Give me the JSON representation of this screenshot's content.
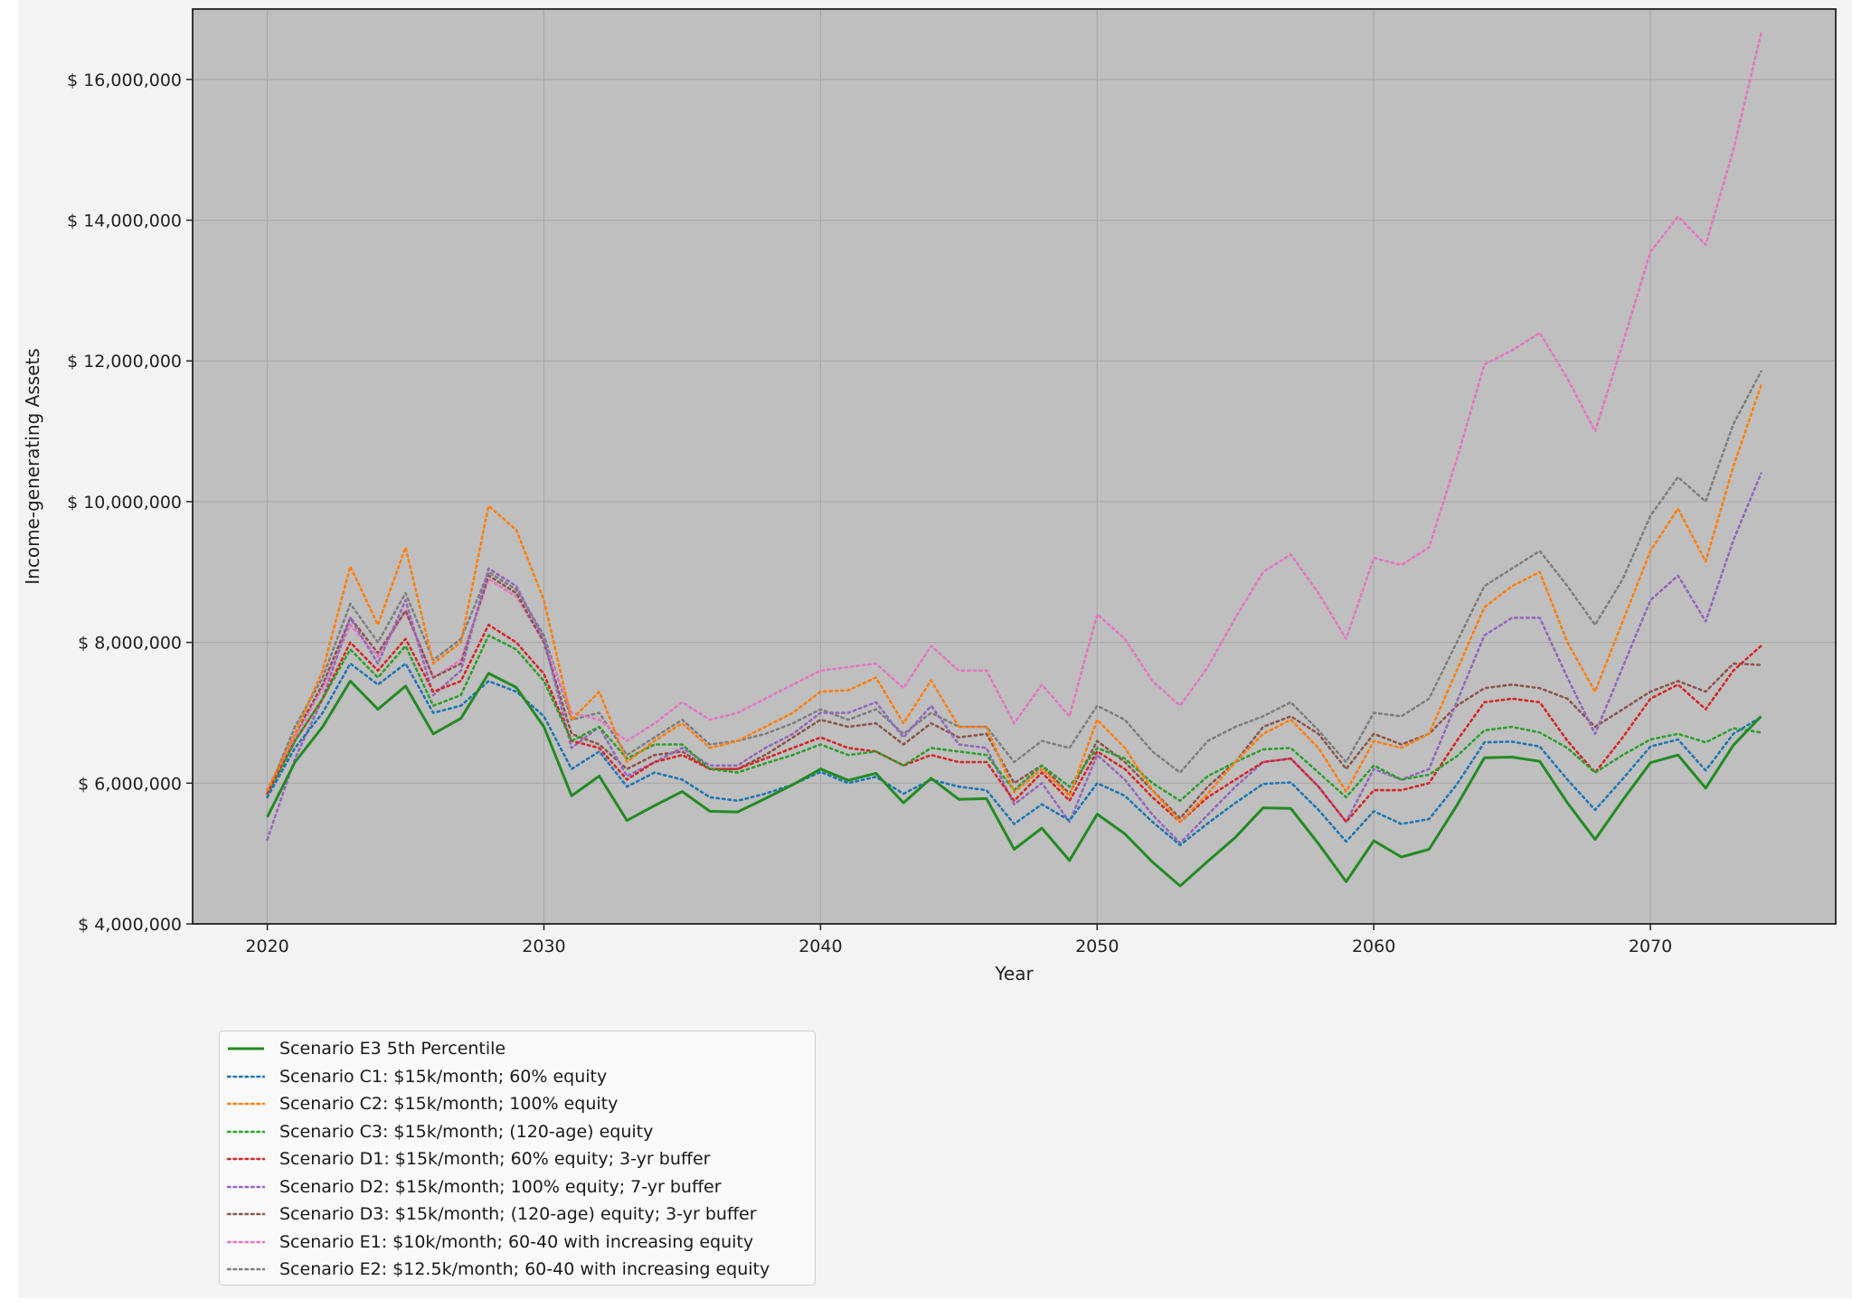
{
  "chart_data": {
    "type": "line",
    "title": "",
    "xlabel": "Year",
    "ylabel": "Income-generating Assets",
    "xlim": [
      2017.3,
      2076.7
    ],
    "ylim": [
      4000000,
      17000000
    ],
    "x_ticks": [
      2020,
      2030,
      2040,
      2050,
      2060,
      2070
    ],
    "y_ticks": [
      4000000,
      6000000,
      8000000,
      10000000,
      12000000,
      14000000,
      16000000
    ],
    "y_tick_labels": [
      "$ 4,000,000",
      "$ 6,000,000",
      "$ 8,000,000",
      "$ 10,000,000",
      "$ 12,000,000",
      "$ 14,000,000",
      "$ 16,000,000"
    ],
    "x_tick_labels": [
      "2020",
      "2030",
      "2040",
      "2050",
      "2060",
      "2070"
    ],
    "grid": true,
    "legend_position": "below",
    "plot_background": "#bfbfbf",
    "x": [
      2020,
      2021,
      2022,
      2023,
      2024,
      2025,
      2026,
      2027,
      2028,
      2029,
      2030,
      2031,
      2032,
      2033,
      2034,
      2035,
      2036,
      2037,
      2038,
      2039,
      2040,
      2041,
      2042,
      2043,
      2044,
      2045,
      2046,
      2047,
      2048,
      2049,
      2050,
      2051,
      2052,
      2053,
      2054,
      2055,
      2056,
      2057,
      2058,
      2059,
      2060,
      2061,
      2062,
      2063,
      2064,
      2065,
      2066,
      2067,
      2068,
      2069,
      2070,
      2071,
      2072,
      2073,
      2074
    ],
    "series": [
      {
        "name": "Scenario E3 5th Percentile",
        "color": "#228b22",
        "style": "solid",
        "values": [
          5520000,
          6300000,
          6800000,
          7450000,
          7050000,
          7380000,
          6700000,
          6920000,
          7560000,
          7360000,
          6800000,
          5820000,
          6100000,
          5470000,
          5680000,
          5880000,
          5600000,
          5590000,
          5780000,
          5980000,
          6200000,
          6040000,
          6140000,
          5720000,
          6070000,
          5770000,
          5780000,
          5060000,
          5360000,
          4900000,
          5560000,
          5280000,
          4880000,
          4540000,
          4890000,
          5230000,
          5650000,
          5640000,
          5140000,
          4600000,
          5180000,
          4950000,
          5060000,
          5680000,
          6360000,
          6370000,
          6310000,
          5720000,
          5200000,
          5760000,
          6290000,
          6400000,
          5930000,
          6540000,
          6950000
        ]
      },
      {
        "name": "Scenario C1: $15k/month; 60% equity",
        "color": "#1f77b4",
        "style": "dotted",
        "values": [
          5800000,
          6500000,
          7000000,
          7700000,
          7400000,
          7700000,
          7000000,
          7100000,
          7450000,
          7300000,
          6950000,
          6200000,
          6450000,
          5950000,
          6150000,
          6050000,
          5800000,
          5750000,
          5850000,
          5980000,
          6160000,
          6000000,
          6090000,
          5850000,
          6050000,
          5950000,
          5900000,
          5420000,
          5700000,
          5470000,
          6000000,
          5820000,
          5450000,
          5120000,
          5430000,
          5720000,
          5990000,
          6010000,
          5620000,
          5170000,
          5600000,
          5420000,
          5490000,
          5980000,
          6580000,
          6590000,
          6520000,
          6050000,
          5620000,
          6060000,
          6520000,
          6620000,
          6180000,
          6700000,
          6940000
        ]
      },
      {
        "name": "Scenario C2: $15k/month; 100% equity",
        "color": "#ff7f0e",
        "style": "dotted",
        "values": [
          5900000,
          6700000,
          7600000,
          9080000,
          8250000,
          9350000,
          7700000,
          8000000,
          9940000,
          9600000,
          8600000,
          6900000,
          7300000,
          6300000,
          6600000,
          6850000,
          6500000,
          6600000,
          6800000,
          7000000,
          7300000,
          7320000,
          7500000,
          6850000,
          7460000,
          6800000,
          6800000,
          5870000,
          6200000,
          5820000,
          6900000,
          6500000,
          5900000,
          5450000,
          5850000,
          6300000,
          6700000,
          6900000,
          6500000,
          5880000,
          6600000,
          6500000,
          6700000,
          7600000,
          8500000,
          8800000,
          9000000,
          8000000,
          7300000,
          8300000,
          9300000,
          9900000,
          9150000,
          10500000,
          11650000
        ]
      },
      {
        "name": "Scenario C3: $15k/month; (120-age) equity",
        "color": "#2ca02c",
        "style": "dotted",
        "values": [
          5800000,
          6600000,
          7200000,
          7900000,
          7500000,
          7950000,
          7100000,
          7250000,
          8100000,
          7900000,
          7450000,
          6600000,
          6800000,
          6350000,
          6550000,
          6550000,
          6200000,
          6150000,
          6280000,
          6400000,
          6550000,
          6400000,
          6450000,
          6250000,
          6500000,
          6450000,
          6400000,
          5900000,
          6250000,
          5950000,
          6500000,
          6350000,
          6000000,
          5750000,
          6100000,
          6300000,
          6480000,
          6500000,
          6150000,
          5800000,
          6250000,
          6050000,
          6120000,
          6380000,
          6750000,
          6800000,
          6720000,
          6500000,
          6150000,
          6400000,
          6620000,
          6700000,
          6580000,
          6780000,
          6720000
        ]
      },
      {
        "name": "Scenario D1: $15k/month; 60% equity; 3-yr buffer",
        "color": "#d62728",
        "style": "dotted",
        "values": [
          5850000,
          6600000,
          7200000,
          8000000,
          7600000,
          8050000,
          7300000,
          7450000,
          8250000,
          8000000,
          7550000,
          6600000,
          6500000,
          6050000,
          6300000,
          6400000,
          6200000,
          6200000,
          6350000,
          6500000,
          6650000,
          6500000,
          6450000,
          6250000,
          6400000,
          6300000,
          6300000,
          5750000,
          6150000,
          5750000,
          6450000,
          6200000,
          5800000,
          5450000,
          5800000,
          6050000,
          6300000,
          6350000,
          5950000,
          5450000,
          5900000,
          5900000,
          6000000,
          6600000,
          7150000,
          7200000,
          7150000,
          6600000,
          6150000,
          6650000,
          7200000,
          7400000,
          7050000,
          7600000,
          7950000
        ]
      },
      {
        "name": "Scenario D2: $15k/month; 100% equity; 7-yr buffer",
        "color": "#9467bd",
        "style": "dotted",
        "values": [
          5200000,
          6350000,
          7200000,
          8350000,
          7700000,
          8600000,
          7250000,
          7600000,
          9050000,
          8800000,
          8050000,
          6500000,
          6800000,
          6100000,
          6300000,
          6500000,
          6250000,
          6250000,
          6500000,
          6700000,
          7000000,
          7000000,
          7150000,
          6650000,
          7100000,
          6550000,
          6500000,
          5700000,
          6000000,
          5450000,
          6400000,
          6050000,
          5550000,
          5150000,
          5550000,
          5950000,
          6300000,
          6350000,
          5950000,
          5450000,
          6200000,
          6050000,
          6200000,
          7150000,
          8100000,
          8350000,
          8350000,
          7500000,
          6700000,
          7650000,
          8600000,
          8950000,
          8300000,
          9450000,
          10400000
        ]
      },
      {
        "name": "Scenario D3: $15k/month; (120-age) equity; 3-yr buffer",
        "color": "#8c564b",
        "style": "dotted",
        "values": [
          5900000,
          6700000,
          7400000,
          8350000,
          7850000,
          8450000,
          7500000,
          7700000,
          8950000,
          8700000,
          8000000,
          6700000,
          6550000,
          6200000,
          6400000,
          6450000,
          6200000,
          6200000,
          6400000,
          6650000,
          6900000,
          6800000,
          6850000,
          6550000,
          6850000,
          6650000,
          6700000,
          6000000,
          6250000,
          5850000,
          6600000,
          6300000,
          5900000,
          5500000,
          5950000,
          6300000,
          6800000,
          6950000,
          6700000,
          6200000,
          6700000,
          6550000,
          6700000,
          7100000,
          7350000,
          7400000,
          7350000,
          7200000,
          6800000,
          7050000,
          7300000,
          7450000,
          7300000,
          7700000,
          7680000
        ]
      },
      {
        "name": "Scenario E1: $10k/month; 60-40 with increasing equity",
        "color": "#e377c2",
        "style": "dotted",
        "values": [
          5850000,
          6650000,
          7350000,
          8250000,
          7800000,
          8450000,
          7500000,
          7750000,
          8900000,
          8650000,
          8000000,
          7000000,
          6900000,
          6600000,
          6850000,
          7150000,
          6900000,
          7000000,
          7200000,
          7400000,
          7600000,
          7650000,
          7700000,
          7350000,
          7950000,
          7600000,
          7600000,
          6850000,
          7400000,
          6950000,
          8400000,
          8050000,
          7450000,
          7100000,
          7650000,
          8350000,
          9000000,
          9250000,
          8700000,
          8050000,
          9200000,
          9100000,
          9350000,
          10600000,
          11950000,
          12150000,
          12400000,
          11750000,
          11000000,
          12250000,
          13550000,
          14050000,
          13650000,
          15000000,
          16650000
        ]
      },
      {
        "name": "Scenario E2: $12.5k/month; 60-40 with increasing equity",
        "color": "#7f7f7f",
        "style": "dotted",
        "values": [
          5850000,
          6800000,
          7500000,
          8550000,
          8000000,
          8700000,
          7750000,
          8050000,
          9000000,
          8750000,
          8100000,
          6900000,
          7000000,
          6400000,
          6650000,
          6900000,
          6550000,
          6600000,
          6700000,
          6850000,
          7050000,
          6900000,
          7050000,
          6700000,
          7000000,
          6800000,
          6800000,
          6300000,
          6600000,
          6500000,
          7100000,
          6900000,
          6450000,
          6150000,
          6600000,
          6800000,
          6950000,
          7150000,
          6750000,
          6300000,
          7000000,
          6950000,
          7200000,
          8000000,
          8800000,
          9050000,
          9300000,
          8800000,
          8250000,
          8900000,
          9800000,
          10350000,
          10000000,
          11100000,
          11850000
        ]
      }
    ]
  }
}
